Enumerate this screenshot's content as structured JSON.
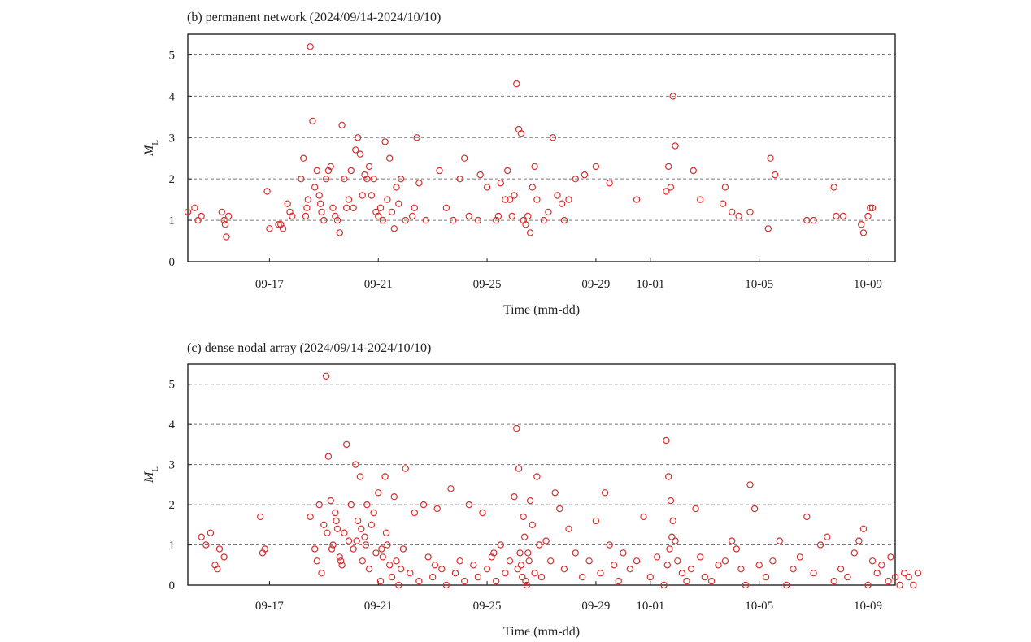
{
  "chart_data": [
    {
      "type": "scatter",
      "title": "(b) permanent network (2024/09/14-2024/10/10)",
      "xlabel": "Time (mm-dd)",
      "ylabel_main": "M",
      "ylabel_sub": "L",
      "x_range": [
        "2024-09-14",
        "2024-10-10"
      ],
      "ylim": [
        0,
        5.5
      ],
      "yticks": [
        "0",
        "1",
        "2",
        "3",
        "4",
        "5"
      ],
      "xticks": [
        {
          "date": "2024-09-17",
          "label": "09-17"
        },
        {
          "date": "2024-09-21",
          "label": "09-21"
        },
        {
          "date": "2024-09-25",
          "label": "09-25"
        },
        {
          "date": "2024-09-29",
          "label": "09-29"
        },
        {
          "date": "2024-10-01",
          "label": "10-01"
        },
        {
          "date": "2024-10-05",
          "label": "10-05"
        },
        {
          "date": "2024-10-09",
          "label": "10-09"
        }
      ],
      "grid": "horizontal dashed",
      "marker_color": "#d63030",
      "x": [
        "2024-09-14T00:00",
        "2024-09-14T06:00",
        "2024-09-14T09:00",
        "2024-09-14T12:00",
        "2024-09-15T06:00",
        "2024-09-15T08:00",
        "2024-09-15T09:00",
        "2024-09-15T10:00",
        "2024-09-15T12:00",
        "2024-09-16T22:00",
        "2024-09-17T00:00",
        "2024-09-17T08:00",
        "2024-09-17T10:00",
        "2024-09-17T12:00",
        "2024-09-17T16:00",
        "2024-09-17T18:00",
        "2024-09-17T20:00",
        "2024-09-18T04:00",
        "2024-09-18T06:00",
        "2024-09-18T08:00",
        "2024-09-18T09:00",
        "2024-09-18T10:00",
        "2024-09-18T12:00",
        "2024-09-18T14:00",
        "2024-09-18T16:00",
        "2024-09-18T18:00",
        "2024-09-18T20:00",
        "2024-09-18T21:00",
        "2024-09-18T22:00",
        "2024-09-19T00:00",
        "2024-09-19T02:00",
        "2024-09-19T04:00",
        "2024-09-19T06:00",
        "2024-09-19T08:00",
        "2024-09-19T10:00",
        "2024-09-19T12:00",
        "2024-09-19T14:00",
        "2024-09-19T16:00",
        "2024-09-19T18:00",
        "2024-09-19T20:00",
        "2024-09-19T22:00",
        "2024-09-20T00:00",
        "2024-09-20T02:00",
        "2024-09-20T04:00",
        "2024-09-20T06:00",
        "2024-09-20T08:00",
        "2024-09-20T10:00",
        "2024-09-20T12:00",
        "2024-09-20T14:00",
        "2024-09-20T16:00",
        "2024-09-20T18:00",
        "2024-09-20T20:00",
        "2024-09-20T22:00",
        "2024-09-21T00:00",
        "2024-09-21T02:00",
        "2024-09-21T04:00",
        "2024-09-21T06:00",
        "2024-09-21T08:00",
        "2024-09-21T10:00",
        "2024-09-21T12:00",
        "2024-09-21T14:00",
        "2024-09-21T16:00",
        "2024-09-21T18:00",
        "2024-09-21T20:00",
        "2024-09-22T00:00",
        "2024-09-22T06:00",
        "2024-09-22T08:00",
        "2024-09-22T10:00",
        "2024-09-22T12:00",
        "2024-09-22T18:00",
        "2024-09-23T06:00",
        "2024-09-23T12:00",
        "2024-09-23T18:00",
        "2024-09-24T00:00",
        "2024-09-24T04:00",
        "2024-09-24T08:00",
        "2024-09-24T16:00",
        "2024-09-24T18:00",
        "2024-09-25T00:00",
        "2024-09-25T08:00",
        "2024-09-25T10:00",
        "2024-09-25T12:00",
        "2024-09-25T16:00",
        "2024-09-25T18:00",
        "2024-09-25T20:00",
        "2024-09-25T22:00",
        "2024-09-26T00:00",
        "2024-09-26T02:00",
        "2024-09-26T04:00",
        "2024-09-26T06:00",
        "2024-09-26T08:00",
        "2024-09-26T10:00",
        "2024-09-26T12:00",
        "2024-09-26T14:00",
        "2024-09-26T16:00",
        "2024-09-26T18:00",
        "2024-09-26T20:00",
        "2024-09-27T02:00",
        "2024-09-27T06:00",
        "2024-09-27T10:00",
        "2024-09-27T14:00",
        "2024-09-27T18:00",
        "2024-09-27T20:00",
        "2024-09-28T00:00",
        "2024-09-28T06:00",
        "2024-09-28T14:00",
        "2024-09-29T00:00",
        "2024-09-29T12:00",
        "2024-09-30T12:00",
        "2024-10-01T14:00",
        "2024-10-01T16:00",
        "2024-10-01T18:00",
        "2024-10-01T20:00",
        "2024-10-01T22:00",
        "2024-10-02T14:00",
        "2024-10-02T20:00",
        "2024-10-03T16:00",
        "2024-10-03T18:00",
        "2024-10-04T00:00",
        "2024-10-04T06:00",
        "2024-10-04T16:00",
        "2024-10-05T08:00",
        "2024-10-05T10:00",
        "2024-10-05T14:00",
        "2024-10-06T18:00",
        "2024-10-07T00:00",
        "2024-10-07T18:00",
        "2024-10-07T20:00",
        "2024-10-08T02:00",
        "2024-10-08T18:00",
        "2024-10-08T20:00",
        "2024-10-09T00:00",
        "2024-10-09T02:00",
        "2024-10-09T04:00"
      ],
      "y": [
        1.2,
        1.3,
        1.0,
        1.1,
        1.2,
        1.0,
        0.9,
        0.6,
        1.1,
        1.7,
        0.8,
        0.9,
        0.9,
        0.8,
        1.4,
        1.2,
        1.1,
        2.0,
        2.5,
        1.1,
        1.3,
        1.5,
        5.2,
        3.4,
        1.8,
        2.2,
        1.6,
        1.4,
        1.2,
        1.0,
        2.0,
        2.2,
        2.3,
        1.3,
        1.1,
        1.0,
        0.7,
        3.3,
        2.0,
        1.3,
        1.5,
        2.2,
        1.3,
        2.7,
        3.0,
        2.6,
        1.6,
        2.1,
        2.0,
        2.3,
        1.6,
        2.0,
        1.2,
        1.1,
        1.3,
        1.0,
        2.9,
        1.5,
        2.5,
        1.2,
        0.8,
        1.8,
        1.4,
        2.0,
        1.0,
        1.1,
        1.3,
        3.0,
        1.9,
        1.0,
        2.2,
        1.3,
        1.0,
        2.0,
        2.5,
        1.1,
        1.0,
        2.1,
        1.8,
        1.0,
        1.1,
        1.9,
        1.5,
        2.2,
        1.5,
        1.1,
        1.6,
        4.3,
        3.2,
        3.1,
        1.0,
        0.9,
        1.1,
        0.7,
        1.8,
        2.3,
        1.5,
        1.0,
        1.2,
        3.0,
        1.6,
        1.4,
        1.0,
        1.5,
        2.0,
        2.1,
        2.3,
        1.9,
        1.5,
        1.7,
        2.3,
        1.8,
        4.0,
        2.8,
        2.2,
        1.5,
        1.4,
        1.8,
        1.2,
        1.1,
        1.2,
        0.8,
        2.5,
        2.1,
        1.0,
        1.0,
        1.8,
        1.1,
        1.1,
        0.9,
        0.7,
        1.1,
        1.3,
        1.3
      ]
    },
    {
      "type": "scatter",
      "title": "(c) dense nodal array (2024/09/14-2024/10/10)",
      "xlabel": "Time (mm-dd)",
      "ylabel_main": "M",
      "ylabel_sub": "L",
      "x_range": [
        "2024-09-14",
        "2024-10-10"
      ],
      "ylim": [
        0,
        5.5
      ],
      "yticks": [
        "0",
        "1",
        "2",
        "3",
        "4",
        "5"
      ],
      "xticks": [
        {
          "date": "2024-09-17",
          "label": "09-17"
        },
        {
          "date": "2024-09-21",
          "label": "09-21"
        },
        {
          "date": "2024-09-25",
          "label": "09-25"
        },
        {
          "date": "2024-09-29",
          "label": "09-29"
        },
        {
          "date": "2024-10-01",
          "label": "10-01"
        },
        {
          "date": "2024-10-05",
          "label": "10-05"
        },
        {
          "date": "2024-10-09",
          "label": "10-09"
        }
      ],
      "grid": "horizontal dashed",
      "marker_color": "#d63030",
      "x": [
        "2024-09-14T12:00",
        "2024-09-14T16:00",
        "2024-09-14T20:00",
        "2024-09-15T00:00",
        "2024-09-15T02:00",
        "2024-09-15T04:00",
        "2024-09-15T08:00",
        "2024-09-16T16:00",
        "2024-09-16T18:00",
        "2024-09-16T20:00",
        "2024-09-18T12:00",
        "2024-09-18T16:00",
        "2024-09-18T18:00",
        "2024-09-18T20:00",
        "2024-09-18T22:00",
        "2024-09-19T00:00",
        "2024-09-19T02:00",
        "2024-09-19T04:00",
        "2024-09-19T06:00",
        "2024-09-19T08:00",
        "2024-09-19T10:00",
        "2024-09-19T12:00",
        "2024-09-19T14:00",
        "2024-09-19T16:00",
        "2024-09-19T18:00",
        "2024-09-19T20:00",
        "2024-09-19T22:00",
        "2024-09-20T00:00",
        "2024-09-20T02:00",
        "2024-09-20T04:00",
        "2024-09-20T06:00",
        "2024-09-20T08:00",
        "2024-09-20T10:00",
        "2024-09-20T12:00",
        "2024-09-20T14:00",
        "2024-09-20T16:00",
        "2024-09-20T18:00",
        "2024-09-20T20:00",
        "2024-09-20T22:00",
        "2024-09-21T00:00",
        "2024-09-21T02:00",
        "2024-09-21T04:00",
        "2024-09-21T06:00",
        "2024-09-21T08:00",
        "2024-09-21T10:00",
        "2024-09-21T12:00",
        "2024-09-21T14:00",
        "2024-09-21T16:00",
        "2024-09-21T18:00",
        "2024-09-21T20:00",
        "2024-09-21T22:00",
        "2024-09-22T00:00",
        "2024-09-22T04:00",
        "2024-09-22T08:00",
        "2024-09-22T12:00",
        "2024-09-22T16:00",
        "2024-09-22T20:00",
        "2024-09-23T00:00",
        "2024-09-23T04:00",
        "2024-09-23T08:00",
        "2024-09-23T12:00",
        "2024-09-23T16:00",
        "2024-09-23T20:00",
        "2024-09-24T00:00",
        "2024-09-24T04:00",
        "2024-09-24T08:00",
        "2024-09-24T12:00",
        "2024-09-24T16:00",
        "2024-09-24T20:00",
        "2024-09-25T00:00",
        "2024-09-25T04:00",
        "2024-09-25T08:00",
        "2024-09-25T12:00",
        "2024-09-25T16:00",
        "2024-09-25T20:00",
        "2024-09-26T00:00",
        "2024-09-26T02:00",
        "2024-09-26T04:00",
        "2024-09-26T06:00",
        "2024-09-26T08:00",
        "2024-09-26T10:00",
        "2024-09-26T12:00",
        "2024-09-26T14:00",
        "2024-09-26T16:00",
        "2024-09-26T18:00",
        "2024-09-26T20:00",
        "2024-09-26T22:00",
        "2024-09-27T00:00",
        "2024-09-27T04:00",
        "2024-09-27T08:00",
        "2024-09-27T12:00",
        "2024-09-27T16:00",
        "2024-09-27T20:00",
        "2024-09-28T00:00",
        "2024-09-28T06:00",
        "2024-09-28T12:00",
        "2024-09-28T18:00",
        "2024-09-29T00:00",
        "2024-09-29T04:00",
        "2024-09-29T08:00",
        "2024-09-29T12:00",
        "2024-09-29T16:00",
        "2024-09-29T20:00",
        "2024-09-30T00:00",
        "2024-09-30T06:00",
        "2024-09-30T12:00",
        "2024-09-30T18:00",
        "2024-10-01T00:00",
        "2024-10-01T06:00",
        "2024-10-01T12:00",
        "2024-10-01T14:00",
        "2024-10-01T16:00",
        "2024-10-01T18:00",
        "2024-10-01T20:00",
        "2024-10-01T22:00",
        "2024-10-02T00:00",
        "2024-10-02T04:00",
        "2024-10-02T08:00",
        "2024-10-02T12:00",
        "2024-10-02T16:00",
        "2024-10-02T20:00",
        "2024-10-03T00:00",
        "2024-10-03T06:00",
        "2024-10-03T12:00",
        "2024-10-03T18:00",
        "2024-10-04T00:00",
        "2024-10-04T04:00",
        "2024-10-04T08:00",
        "2024-10-04T12:00",
        "2024-10-04T16:00",
        "2024-10-04T20:00",
        "2024-10-05T00:00",
        "2024-10-05T06:00",
        "2024-10-05T12:00",
        "2024-10-05T18:00",
        "2024-10-06T00:00",
        "2024-10-06T06:00",
        "2024-10-06T12:00",
        "2024-10-06T18:00",
        "2024-10-07T00:00",
        "2024-10-07T06:00",
        "2024-10-07T12:00",
        "2024-10-07T18:00",
        "2024-10-08T00:00",
        "2024-10-08T06:00",
        "2024-10-08T12:00",
        "2024-10-08T16:00",
        "2024-10-08T20:00",
        "2024-10-09T00:00",
        "2024-10-09T04:00",
        "2024-10-09T08:00",
        "2024-10-09T12:00",
        "2024-10-09T18:00",
        "2024-10-09T20:00",
        "2024-10-10T00:00",
        "2024-10-10T04:00",
        "2024-10-10T08:00",
        "2024-10-10T12:00",
        "2024-10-10T16:00",
        "2024-10-10T20:00",
        "2024-09-19T03:00",
        "2024-09-19T07:00",
        "2024-09-19T11:00",
        "2024-09-19T15:00",
        "2024-09-20T05:00",
        "2024-09-20T09:00",
        "2024-09-20T13:00",
        "2024-09-26T03:00",
        "2024-09-26T05:00",
        "2024-09-26T07:00",
        "2024-09-26T09:00",
        "2024-09-26T11:00",
        "2024-09-26T13:00",
        "2024-09-21T03:00",
        "2024-09-21T07:00",
        "2024-10-01T15:00",
        "2024-10-01T17:00",
        "2024-10-01T19:00",
        "2024-09-25T06:00",
        "2024-09-23T02:00"
      ],
      "y": [
        1.2,
        1.0,
        1.3,
        0.5,
        0.4,
        0.9,
        0.7,
        1.7,
        0.8,
        0.9,
        1.7,
        0.9,
        0.6,
        2.0,
        0.3,
        1.5,
        5.2,
        3.2,
        2.1,
        1.0,
        1.8,
        1.4,
        0.7,
        0.5,
        1.3,
        3.5,
        1.1,
        2.0,
        0.9,
        3.0,
        1.6,
        2.7,
        0.6,
        1.2,
        2.0,
        0.4,
        1.5,
        1.8,
        0.8,
        2.3,
        0.1,
        0.7,
        2.7,
        1.0,
        0.5,
        0.2,
        2.2,
        0.6,
        0.0,
        0.4,
        0.9,
        2.9,
        0.3,
        1.8,
        0.1,
        2.0,
        0.7,
        0.2,
        1.9,
        0.4,
        0.0,
        2.4,
        0.3,
        0.6,
        0.1,
        2.0,
        0.5,
        0.2,
        1.8,
        0.4,
        0.7,
        0.1,
        1.0,
        0.3,
        0.6,
        2.2,
        3.9,
        2.9,
        0.5,
        1.7,
        0.1,
        0.8,
        2.1,
        1.5,
        0.3,
        2.7,
        1.0,
        0.2,
        1.1,
        0.6,
        2.3,
        1.9,
        0.4,
        1.4,
        0.8,
        0.2,
        0.6,
        1.6,
        0.3,
        2.3,
        1.0,
        0.5,
        0.1,
        0.8,
        0.4,
        0.6,
        1.7,
        0.2,
        0.7,
        0.0,
        3.6,
        2.7,
        2.1,
        1.6,
        1.1,
        0.6,
        0.3,
        0.1,
        0.4,
        1.9,
        0.7,
        0.2,
        0.1,
        0.5,
        0.6,
        1.1,
        0.9,
        0.4,
        0.0,
        2.5,
        1.9,
        0.5,
        0.2,
        0.6,
        1.1,
        0.0,
        0.4,
        0.7,
        1.7,
        0.3,
        1.0,
        1.2,
        0.1,
        0.4,
        0.2,
        0.8,
        1.1,
        1.4,
        0.0,
        0.6,
        0.3,
        0.5,
        0.1,
        0.7,
        0.2,
        0.0,
        0.3,
        0.2,
        0.0,
        0.3,
        1.3,
        0.9,
        1.6,
        0.6,
        1.1,
        1.4,
        1.0,
        0.4,
        0.8,
        0.2,
        1.2,
        0.0,
        0.6,
        0.9,
        1.3,
        0.5,
        0.9,
        1.2,
        0.8,
        0.5
      ]
    }
  ]
}
